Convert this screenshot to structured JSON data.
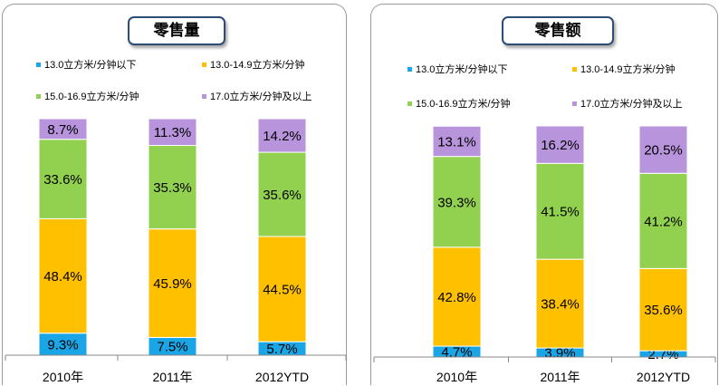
{
  "chart_data": [
    {
      "type": "bar",
      "stacked": true,
      "title": "零售量",
      "categories": [
        "2010年",
        "2011年",
        "2012YTD"
      ],
      "series": [
        {
          "name": "13.0立方米/分钟以下",
          "color": "#1aa5e6",
          "values": [
            9.3,
            7.5,
            5.7
          ],
          "labels": [
            "9.3%",
            "7.5%",
            "5.7%"
          ]
        },
        {
          "name": "13.0-14.9立方米/分钟",
          "color": "#ffc000",
          "values": [
            48.4,
            45.9,
            44.5
          ],
          "labels": [
            "48.4%",
            "45.9%",
            "44.5%"
          ]
        },
        {
          "name": "15.0-16.9立方米/分钟",
          "color": "#92d050",
          "values": [
            33.6,
            35.3,
            35.6
          ],
          "labels": [
            "33.6%",
            "35.3%",
            "35.6%"
          ]
        },
        {
          "name": "17.0立方米/分钟及以上",
          "color": "#b894dd",
          "values": [
            8.7,
            11.3,
            14.2
          ],
          "labels": [
            "8.7%",
            "11.3%",
            "14.2%"
          ]
        }
      ],
      "ylim": [
        0,
        100
      ],
      "legend_position": "top"
    },
    {
      "type": "bar",
      "stacked": true,
      "title": "零售额",
      "categories": [
        "2010年",
        "2011年",
        "2012YTD"
      ],
      "series": [
        {
          "name": "13.0立方米/分钟以下",
          "color": "#1aa5e6",
          "values": [
            4.7,
            3.9,
            2.7
          ],
          "labels": [
            "4.7%",
            "3.9%",
            "2.7%"
          ]
        },
        {
          "name": "13.0-14.9立方米/分钟",
          "color": "#ffc000",
          "values": [
            42.8,
            38.4,
            35.6
          ],
          "labels": [
            "42.8%",
            "38.4%",
            "35.6%"
          ]
        },
        {
          "name": "15.0-16.9立方米/分钟",
          "color": "#92d050",
          "values": [
            39.3,
            41.5,
            41.2
          ],
          "labels": [
            "39.3%",
            "41.5%",
            "41.2%"
          ]
        },
        {
          "name": "17.0立方米/分钟及以上",
          "color": "#b894dd",
          "values": [
            13.1,
            16.2,
            20.5
          ],
          "labels": [
            "13.1%",
            "16.2%",
            "20.5%"
          ]
        }
      ],
      "ylim": [
        0,
        100
      ],
      "legend_position": "top"
    }
  ]
}
